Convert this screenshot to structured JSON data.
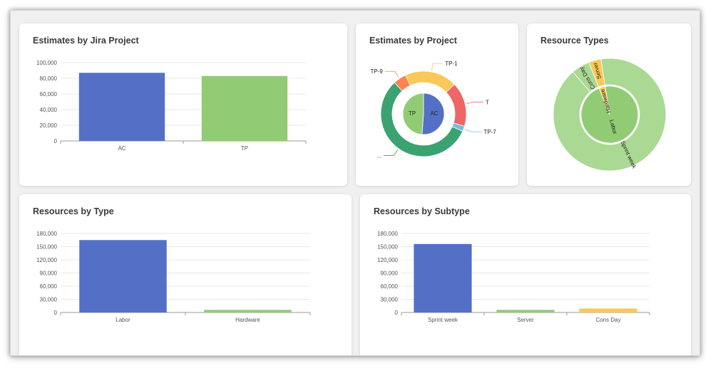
{
  "colors": {
    "blue": "#5470c6",
    "green": "#91cc75",
    "yellow": "#fac858",
    "red": "#ee6666",
    "teal": "#3ba272",
    "orange": "#fc8452",
    "lightblue": "#73c0de",
    "lightgreen": "#aad993"
  },
  "cards": {
    "jira": {
      "title": "Estimates by Jira Project"
    },
    "project": {
      "title": "Estimates by Project"
    },
    "rtypes": {
      "title": "Resource Types"
    },
    "rbytype": {
      "title": "Resources by Type"
    },
    "rbysub": {
      "title": "Resources by Subtype"
    }
  },
  "chart_data": [
    {
      "id": "jira",
      "type": "bar",
      "title": "Estimates by Jira Project",
      "categories": [
        "AC",
        "TP"
      ],
      "values": [
        87000,
        83000
      ],
      "colors": [
        "#5470c6",
        "#91cc75"
      ],
      "ylim": [
        0,
        100000
      ],
      "yticks": [
        "0",
        "20,000",
        "40,000",
        "60,000",
        "80,000",
        "100,000"
      ],
      "grid": true
    },
    {
      "id": "project",
      "type": "pie",
      "title": "Estimates by Project",
      "inner": [
        {
          "name": "AC",
          "value": 87000,
          "color": "#5470c6"
        },
        {
          "name": "TP",
          "value": 83000,
          "color": "#91cc75"
        }
      ],
      "outer": [
        {
          "name": "TP-1",
          "value": 20,
          "color": "#fac858"
        },
        {
          "name": "T",
          "value": 17,
          "color": "#ee6666"
        },
        {
          "name": "TP-7",
          "value": 2,
          "color": "#73c0de"
        },
        {
          "name": "...",
          "value": 57,
          "color": "#3ba272"
        },
        {
          "name": "TP-9",
          "value": 5,
          "color": "#fc8452"
        }
      ]
    },
    {
      "id": "rtypes",
      "type": "pie",
      "title": "Resource Types",
      "inner": [
        {
          "name": "Labor",
          "value": 165000,
          "color": "#91cc75"
        },
        {
          "name": "Hardware",
          "value": 6000,
          "color": "#fac858"
        }
      ],
      "outer": [
        {
          "name": "Sprint week",
          "value": 156000,
          "color": "#aad993"
        },
        {
          "name": "Cons Day",
          "value": 9000,
          "color": "#aad993"
        },
        {
          "name": "Server",
          "value": 6000,
          "color": "#fac858"
        }
      ]
    },
    {
      "id": "rbytype",
      "type": "bar",
      "title": "Resources by Type",
      "categories": [
        "Labor",
        "Hardware"
      ],
      "values": [
        165000,
        6000
      ],
      "colors": [
        "#5470c6",
        "#91cc75"
      ],
      "ylim": [
        0,
        180000
      ],
      "yticks": [
        "0",
        "30,000",
        "60,000",
        "90,000",
        "120,000",
        "150,000",
        "180,000"
      ],
      "grid": true
    },
    {
      "id": "rbysub",
      "type": "bar",
      "title": "Resources by Subtype",
      "categories": [
        "Sprint week",
        "Server",
        "Cons Day"
      ],
      "values": [
        156000,
        6000,
        9000
      ],
      "colors": [
        "#5470c6",
        "#91cc75",
        "#fac858"
      ],
      "ylim": [
        0,
        180000
      ],
      "yticks": [
        "0",
        "30,000",
        "60,000",
        "90,000",
        "120,000",
        "150,000",
        "180,000"
      ],
      "grid": true
    }
  ]
}
